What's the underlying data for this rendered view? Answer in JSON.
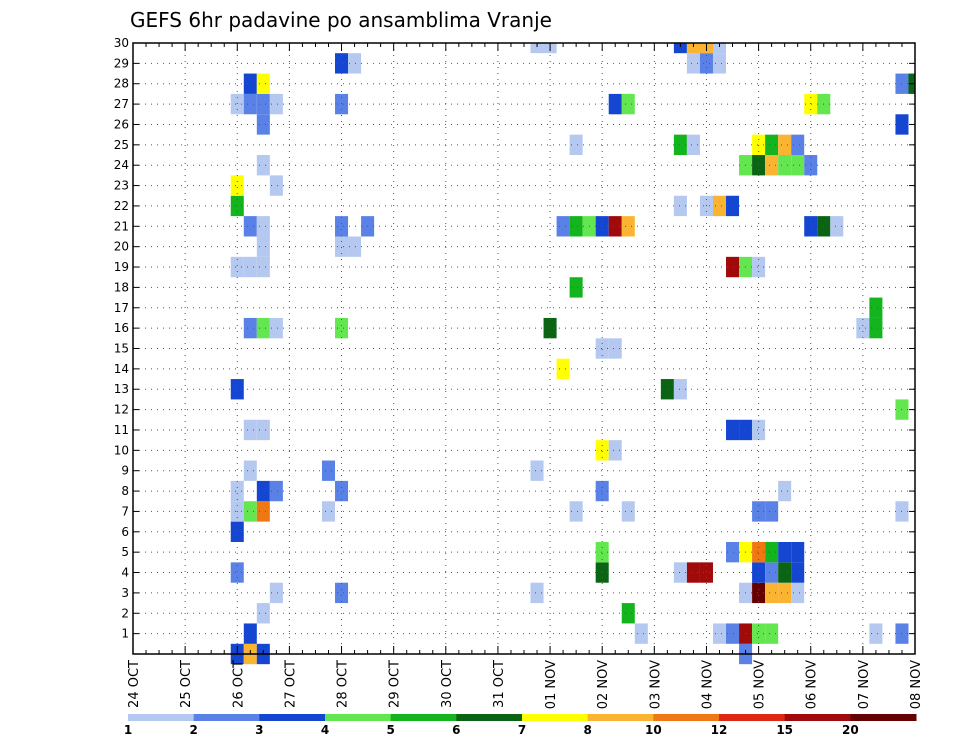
{
  "chart_data": {
    "type": "heatmap",
    "title": "GEFS 6hr padavine po ansamblima Vranje",
    "xlabel": "",
    "ylabel": "",
    "x_ticks": [
      "24 OCT",
      "25 OCT",
      "26 OCT",
      "27 OCT",
      "28 OCT",
      "29 OCT",
      "30 OCT",
      "31 OCT",
      "01 NOV",
      "02 NOV",
      "03 NOV",
      "04 NOV",
      "05 NOV",
      "06 NOV",
      "07 NOV",
      "08 NOV"
    ],
    "y_ticks": [
      "1",
      "2",
      "3",
      "4",
      "5",
      "6",
      "7",
      "8",
      "9",
      "10",
      "11",
      "12",
      "13",
      "14",
      "15",
      "16",
      "17",
      "18",
      "19",
      "20",
      "21",
      "22",
      "23",
      "24",
      "25",
      "26",
      "27",
      "28",
      "29",
      "30"
    ],
    "x_range_steps": [
      0,
      60
    ],
    "step_hours": 6,
    "y_range": [
      0,
      30
    ],
    "grid": true,
    "colorbar": {
      "labels": [
        "1",
        "2",
        "3",
        "4",
        "5",
        "6",
        "7",
        "8",
        "10",
        "12",
        "15",
        "20"
      ],
      "colors": [
        "#b4c8f0",
        "#5a82e6",
        "#1446d2",
        "#64e650",
        "#14b41e",
        "#0a6414",
        "#ffff00",
        "#fab432",
        "#f07814",
        "#dc2814",
        "#a00a0a",
        "#640000"
      ]
    },
    "cells": [
      [
        8,
        0,
        3
      ],
      [
        9,
        0,
        8
      ],
      [
        10,
        0,
        3
      ],
      [
        47,
        0,
        2
      ],
      [
        9,
        1,
        3
      ],
      [
        39,
        1,
        1
      ],
      [
        45,
        1,
        1
      ],
      [
        46,
        1,
        2
      ],
      [
        47,
        1,
        11
      ],
      [
        48,
        1,
        4
      ],
      [
        49,
        1,
        4
      ],
      [
        57,
        1,
        1
      ],
      [
        59,
        1,
        2
      ],
      [
        10,
        2,
        1
      ],
      [
        38,
        2,
        5
      ],
      [
        11,
        3,
        1
      ],
      [
        16,
        3,
        2
      ],
      [
        31,
        3,
        1
      ],
      [
        47,
        3,
        1
      ],
      [
        48,
        3,
        12
      ],
      [
        49,
        3,
        8
      ],
      [
        50,
        3,
        8
      ],
      [
        51,
        3,
        1
      ],
      [
        8,
        4,
        2
      ],
      [
        36,
        4,
        6
      ],
      [
        42,
        4,
        1
      ],
      [
        43,
        4,
        11
      ],
      [
        44,
        4,
        11
      ],
      [
        48,
        4,
        3
      ],
      [
        49,
        4,
        2
      ],
      [
        50,
        4,
        6
      ],
      [
        51,
        4,
        3
      ],
      [
        36,
        5,
        4
      ],
      [
        46,
        5,
        2
      ],
      [
        47,
        5,
        7
      ],
      [
        48,
        5,
        9
      ],
      [
        49,
        5,
        5
      ],
      [
        50,
        5,
        3
      ],
      [
        51,
        5,
        3
      ],
      [
        8,
        6,
        3
      ],
      [
        8,
        7,
        1
      ],
      [
        9,
        7,
        4
      ],
      [
        10,
        7,
        9
      ],
      [
        15,
        7,
        1
      ],
      [
        34,
        7,
        1
      ],
      [
        38,
        7,
        1
      ],
      [
        48,
        7,
        2
      ],
      [
        49,
        7,
        2
      ],
      [
        59,
        7,
        1
      ],
      [
        8,
        8,
        1
      ],
      [
        10,
        8,
        3
      ],
      [
        11,
        8,
        2
      ],
      [
        16,
        8,
        2
      ],
      [
        36,
        8,
        2
      ],
      [
        50,
        8,
        1
      ],
      [
        9,
        9,
        1
      ],
      [
        15,
        9,
        2
      ],
      [
        31,
        9,
        1
      ],
      [
        36,
        10,
        7
      ],
      [
        37,
        10,
        1
      ],
      [
        9,
        11,
        1
      ],
      [
        10,
        11,
        1
      ],
      [
        46,
        11,
        3
      ],
      [
        47,
        11,
        3
      ],
      [
        48,
        11,
        1
      ],
      [
        59,
        12,
        4
      ],
      [
        8,
        13,
        3
      ],
      [
        41,
        13,
        6
      ],
      [
        42,
        13,
        1
      ],
      [
        33,
        14,
        7
      ],
      [
        36,
        15,
        1
      ],
      [
        37,
        15,
        1
      ],
      [
        9,
        16,
        2
      ],
      [
        10,
        16,
        4
      ],
      [
        11,
        16,
        1
      ],
      [
        16,
        16,
        4
      ],
      [
        32,
        16,
        6
      ],
      [
        56,
        16,
        1
      ],
      [
        57,
        16,
        5
      ],
      [
        57,
        17,
        5
      ],
      [
        34,
        18,
        5
      ],
      [
        8,
        19,
        1
      ],
      [
        9,
        19,
        1
      ],
      [
        10,
        19,
        1
      ],
      [
        46,
        19,
        11
      ],
      [
        47,
        19,
        4
      ],
      [
        48,
        19,
        1
      ],
      [
        10,
        20,
        1
      ],
      [
        16,
        20,
        1
      ],
      [
        17,
        20,
        1
      ],
      [
        9,
        21,
        2
      ],
      [
        10,
        21,
        1
      ],
      [
        16,
        21,
        2
      ],
      [
        18,
        21,
        2
      ],
      [
        33,
        21,
        2
      ],
      [
        34,
        21,
        5
      ],
      [
        35,
        21,
        4
      ],
      [
        36,
        21,
        3
      ],
      [
        37,
        21,
        11
      ],
      [
        38,
        21,
        8
      ],
      [
        52,
        21,
        3
      ],
      [
        53,
        21,
        6
      ],
      [
        54,
        21,
        1
      ],
      [
        8,
        22,
        5
      ],
      [
        42,
        22,
        1
      ],
      [
        44,
        22,
        1
      ],
      [
        45,
        22,
        8
      ],
      [
        46,
        22,
        3
      ],
      [
        8,
        23,
        7
      ],
      [
        11,
        23,
        1
      ],
      [
        10,
        24,
        1
      ],
      [
        47,
        24,
        4
      ],
      [
        48,
        24,
        6
      ],
      [
        49,
        24,
        8
      ],
      [
        50,
        24,
        4
      ],
      [
        51,
        24,
        4
      ],
      [
        52,
        24,
        2
      ],
      [
        34,
        25,
        1
      ],
      [
        42,
        25,
        5
      ],
      [
        43,
        25,
        1
      ],
      [
        48,
        25,
        7
      ],
      [
        49,
        25,
        5
      ],
      [
        50,
        25,
        8
      ],
      [
        51,
        25,
        2
      ],
      [
        10,
        26,
        2
      ],
      [
        59,
        26,
        3
      ],
      [
        8,
        27,
        1
      ],
      [
        9,
        27,
        2
      ],
      [
        10,
        27,
        2
      ],
      [
        11,
        27,
        1
      ],
      [
        16,
        27,
        2
      ],
      [
        37,
        27,
        3
      ],
      [
        38,
        27,
        4
      ],
      [
        52,
        27,
        7
      ],
      [
        53,
        27,
        4
      ],
      [
        9,
        28,
        3
      ],
      [
        10,
        28,
        7
      ],
      [
        59,
        28,
        2
      ],
      [
        60,
        28,
        6
      ],
      [
        16,
        29,
        3
      ],
      [
        17,
        29,
        1
      ],
      [
        43,
        29,
        1
      ],
      [
        44,
        29,
        2
      ],
      [
        45,
        29,
        1
      ],
      [
        31,
        30,
        1
      ],
      [
        32,
        30,
        1
      ],
      [
        42,
        30,
        3
      ],
      [
        43,
        30,
        8
      ],
      [
        44,
        30,
        8
      ],
      [
        45,
        30,
        1
      ]
    ]
  }
}
